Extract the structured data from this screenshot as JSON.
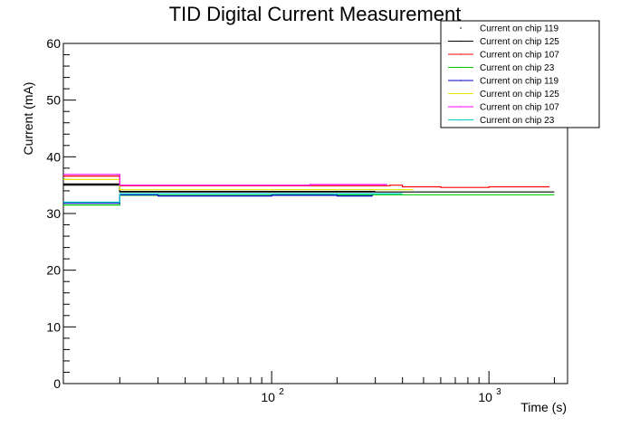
{
  "chart_data": {
    "type": "line",
    "title": "TID Digital Current Measurement",
    "xlabel": "Time (s)",
    "ylabel": "Current (mA)",
    "xscale": "log",
    "xlim": [
      11,
      2300
    ],
    "ylim": [
      0,
      60
    ],
    "grid": false,
    "legend_position": "top-right",
    "y_ticks": [
      0,
      10,
      20,
      30,
      40,
      50,
      60
    ],
    "x_major_ticks": [
      100,
      1000
    ],
    "x_tick_labels": [
      "10",
      "10"
    ],
    "x_tick_exponents": [
      "2",
      "3"
    ],
    "series": [
      {
        "name": "Current on chip 119",
        "color": "#000000",
        "marker": "dot",
        "x": [
          11,
          20,
          30,
          300
        ],
        "y": [
          35.2,
          33.9,
          33.9,
          33.9
        ]
      },
      {
        "name": "Current on chip 125",
        "color": "#000000",
        "marker": "line",
        "x": [
          11,
          20,
          1000,
          2000
        ],
        "y": [
          35.0,
          33.8,
          33.8,
          33.8
        ]
      },
      {
        "name": "Current on chip 107",
        "color": "#ff0000",
        "marker": "line",
        "x": [
          11,
          20,
          200,
          350,
          400,
          600,
          1000,
          1900
        ],
        "y": [
          36.6,
          34.9,
          34.9,
          35.0,
          34.7,
          34.6,
          34.7,
          34.7
        ]
      },
      {
        "name": "Current on chip 23",
        "color": "#00cc00",
        "marker": "line",
        "x": [
          11,
          20,
          100,
          1000,
          2000
        ],
        "y": [
          31.5,
          33.2,
          33.3,
          33.3,
          33.3
        ]
      },
      {
        "name": "Current on chip 119",
        "color": "#0000cc",
        "marker": "line",
        "x": [
          11,
          20,
          30,
          60,
          100,
          200,
          290
        ],
        "y": [
          31.8,
          33.3,
          33.1,
          33.1,
          33.2,
          33.1,
          33.3
        ]
      },
      {
        "name": "Current on chip 125",
        "color": "#e6e600",
        "marker": "line",
        "x": [
          11,
          20,
          100,
          450
        ],
        "y": [
          36.0,
          34.2,
          34.2,
          34.2
        ]
      },
      {
        "name": "Current on chip 107",
        "color": "#ff00ff",
        "marker": "line",
        "x": [
          11,
          20,
          30,
          100,
          150,
          200,
          340
        ],
        "y": [
          36.9,
          35.0,
          35.0,
          35.0,
          35.1,
          35.1,
          35.1
        ]
      },
      {
        "name": "Current on chip 23",
        "color": "#00cccc",
        "marker": "line",
        "x": [
          11,
          20,
          100,
          400
        ],
        "y": [
          32.0,
          33.5,
          33.5,
          33.5
        ]
      }
    ]
  }
}
